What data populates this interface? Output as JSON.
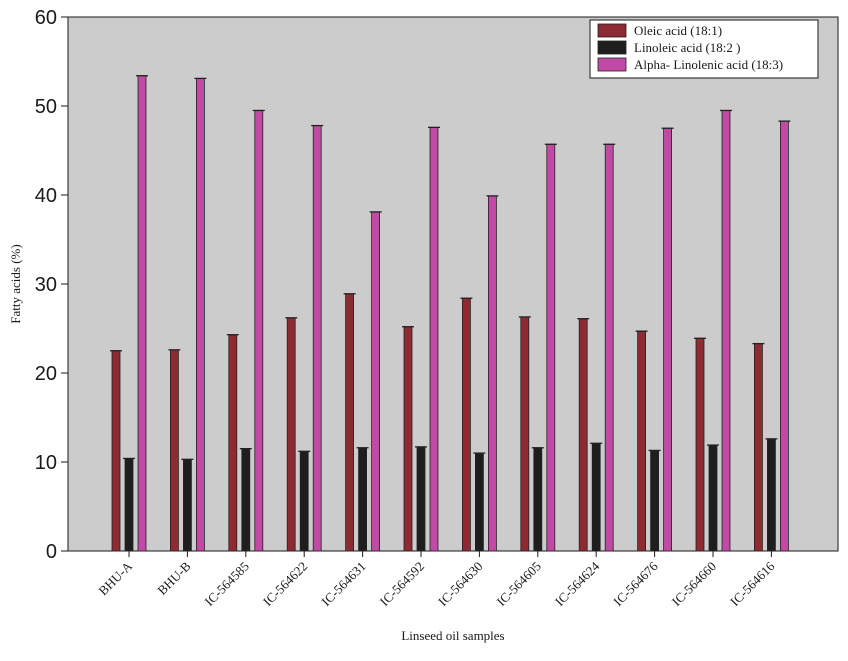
{
  "chart_data": {
    "type": "bar",
    "title": "",
    "xlabel": "Linseed oil samples",
    "ylabel": "Fatty acids (%)",
    "ylim": [
      0,
      60
    ],
    "yticks": [
      0,
      10,
      20,
      30,
      40,
      50,
      60
    ],
    "grid": false,
    "legend_position": "top-right",
    "categories": [
      "BHU-A",
      "BHU-B",
      "IC-564585",
      "IC-564622",
      "IC-564631",
      "IC-564592",
      "IC-564630",
      "IC-564605",
      "IC-564624",
      "IC-564676",
      "IC-564660",
      "IC-564616"
    ],
    "series": [
      {
        "name": "Oleic acid (18:1)",
        "color": "#8e2b32",
        "values": [
          22.5,
          22.6,
          24.3,
          26.2,
          28.9,
          25.2,
          28.4,
          26.3,
          26.1,
          24.7,
          23.9,
          23.3
        ]
      },
      {
        "name": "Linoleic acid (18:2 )",
        "color": "#1e1e1e",
        "values": [
          10.4,
          10.3,
          11.5,
          11.2,
          11.6,
          11.7,
          11.0,
          11.6,
          12.1,
          11.3,
          11.9,
          12.6
        ]
      },
      {
        "name": "Alpha- Linolenic acid (18:3)",
        "color": "#c04aa4",
        "values": [
          53.4,
          53.1,
          49.5,
          47.8,
          38.1,
          47.6,
          39.9,
          45.7,
          45.7,
          47.5,
          49.5,
          48.3
        ]
      }
    ],
    "plot_background": "#cccccc"
  }
}
